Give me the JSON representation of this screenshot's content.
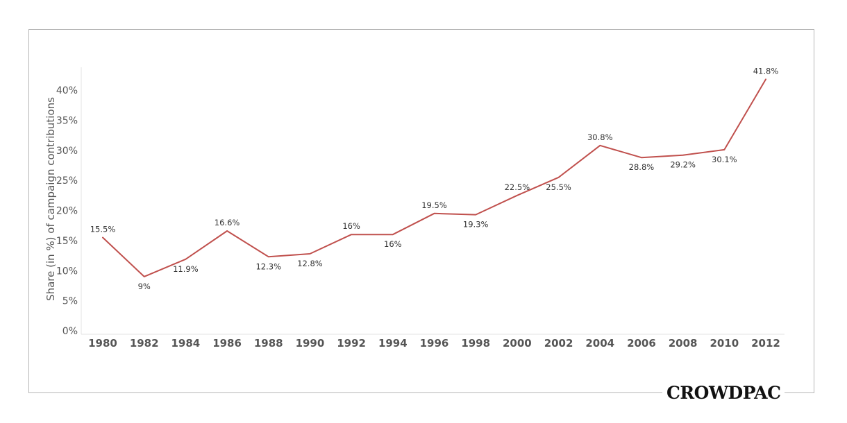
{
  "brand": {
    "logo_text": "CROWDPAC"
  },
  "chart_data": {
    "type": "line",
    "title": "",
    "xlabel": "",
    "ylabel": "Share (in %) of campaign contributions",
    "x": [
      "1980",
      "1982",
      "1984",
      "1986",
      "1988",
      "1990",
      "1992",
      "1994",
      "1996",
      "1998",
      "2000",
      "2002",
      "2004",
      "2006",
      "2008",
      "2010",
      "2012"
    ],
    "series": [
      {
        "values": [
          15.5,
          9,
          11.9,
          16.6,
          12.3,
          12.8,
          16,
          16,
          19.5,
          19.3,
          22.5,
          25.5,
          30.8,
          28.8,
          29.2,
          30.1,
          41.8
        ],
        "data_labels": [
          "15.5%",
          "9%",
          "11.9%",
          "16.6%",
          "12.3%",
          "12.8%",
          "16%",
          "16%",
          "19.5%",
          "19.3%",
          "22.5%",
          "25.5%",
          "30.8%",
          "28.8%",
          "29.2%",
          "30.1%",
          "41.8%"
        ],
        "label_positions": [
          "above",
          "below",
          "below",
          "above",
          "below",
          "below",
          "above",
          "below",
          "above",
          "below",
          "above",
          "below",
          "above",
          "below",
          "below",
          "below",
          "above"
        ]
      }
    ],
    "y_ticks": [
      0,
      5,
      10,
      15,
      20,
      25,
      30,
      35,
      40
    ],
    "y_tick_labels": [
      "0%",
      "5%",
      "10%",
      "15%",
      "20%",
      "25%",
      "30%",
      "35%",
      "40%"
    ],
    "ylim": [
      0,
      43
    ],
    "grid": false,
    "legend": "none",
    "line_color": "#c0504d"
  }
}
